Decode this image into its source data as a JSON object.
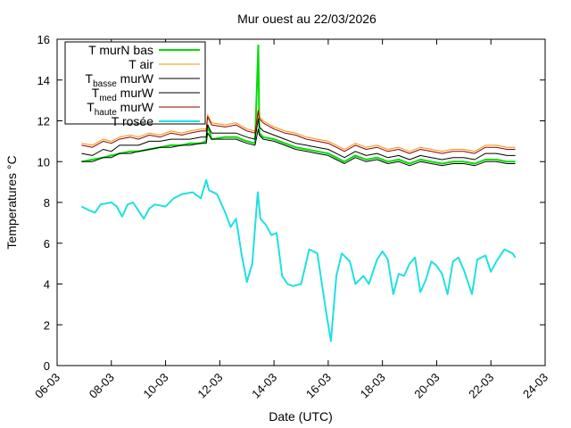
{
  "chart_data": {
    "type": "line",
    "title": "Mur ouest au 22/03/2026",
    "xlabel": "Date (UTC)",
    "ylabel": "Temperatures °C",
    "x_unit": "day of March 2026",
    "xlim": [
      6,
      24
    ],
    "ylim": [
      0,
      16
    ],
    "x_ticks": [
      {
        "value": 6,
        "label": "06-03"
      },
      {
        "value": 8,
        "label": "08-03"
      },
      {
        "value": 10,
        "label": "10-03"
      },
      {
        "value": 12,
        "label": "12-03"
      },
      {
        "value": 14,
        "label": "14-03"
      },
      {
        "value": 16,
        "label": "16-03"
      },
      {
        "value": 18,
        "label": "18-03"
      },
      {
        "value": 20,
        "label": "20-03"
      },
      {
        "value": 22,
        "label": "22-03"
      },
      {
        "value": 24,
        "label": "24-03"
      }
    ],
    "y_ticks": [
      0,
      2,
      4,
      6,
      8,
      10,
      12,
      14,
      16
    ],
    "grid": false,
    "legend_position": "top-left",
    "series": [
      {
        "name": "T murN bas",
        "name_main": "T murN bas",
        "name_sub": "",
        "name_suffix": "",
        "color": "#00dd00",
        "width": 2,
        "x": [
          6.9,
          7.3,
          7.7,
          8.0,
          8.3,
          8.7,
          9.0,
          9.4,
          9.8,
          10.2,
          10.6,
          10.9,
          11.3,
          11.5,
          11.55,
          11.7,
          12.2,
          12.6,
          13.0,
          13.3,
          13.42,
          13.46,
          13.6,
          14.0,
          14.4,
          14.8,
          15.2,
          15.6,
          16.0,
          16.3,
          16.6,
          17.0,
          17.4,
          17.8,
          18.2,
          18.6,
          19.0,
          19.4,
          19.8,
          20.2,
          20.6,
          21.0,
          21.4,
          21.8,
          22.2,
          22.6,
          22.9
        ],
        "y": [
          10.0,
          10.1,
          10.2,
          10.3,
          10.4,
          10.5,
          10.5,
          10.6,
          10.7,
          10.8,
          10.8,
          10.9,
          10.9,
          11.0,
          11.8,
          11.1,
          11.2,
          11.2,
          11.0,
          10.9,
          15.7,
          11.4,
          11.2,
          11.1,
          10.9,
          10.7,
          10.6,
          10.5,
          10.4,
          10.2,
          10.0,
          10.3,
          10.1,
          10.2,
          10.0,
          10.1,
          9.9,
          10.1,
          10.0,
          9.9,
          10.0,
          10.0,
          9.9,
          10.1,
          10.1,
          10.0,
          10.0
        ]
      },
      {
        "name": "T air",
        "name_main": "T air",
        "name_sub": "",
        "name_suffix": "",
        "color": "#ff8c00",
        "width": 1,
        "x": [
          6.9,
          7.3,
          7.7,
          8.0,
          8.3,
          8.7,
          9.0,
          9.4,
          9.8,
          10.2,
          10.6,
          10.9,
          11.3,
          11.5,
          11.55,
          11.7,
          12.2,
          12.6,
          13.0,
          13.3,
          13.42,
          13.46,
          13.6,
          14.0,
          14.4,
          14.8,
          15.2,
          15.6,
          16.0,
          16.3,
          16.6,
          17.0,
          17.4,
          17.8,
          18.2,
          18.6,
          19.0,
          19.4,
          19.8,
          20.2,
          20.6,
          21.0,
          21.4,
          21.8,
          22.2,
          22.6,
          22.9
        ],
        "y": [
          10.9,
          10.8,
          11.1,
          11.0,
          11.2,
          11.3,
          11.2,
          11.4,
          11.3,
          11.5,
          11.4,
          11.5,
          11.6,
          11.6,
          12.3,
          11.9,
          11.8,
          11.9,
          11.6,
          11.5,
          12.6,
          12.2,
          12.0,
          11.7,
          11.5,
          11.4,
          11.2,
          11.1,
          11.0,
          10.8,
          10.6,
          10.9,
          10.7,
          10.8,
          10.6,
          10.7,
          10.5,
          10.7,
          10.6,
          10.5,
          10.6,
          10.6,
          10.5,
          10.8,
          10.8,
          10.7,
          10.7
        ]
      },
      {
        "name": "Tbasse murW",
        "name_main": "T",
        "name_sub": "basse",
        "name_suffix": " murW",
        "color": "#000000",
        "width": 1,
        "x": [
          6.9,
          7.3,
          7.7,
          8.0,
          8.3,
          8.7,
          9.0,
          9.4,
          9.8,
          10.2,
          10.6,
          10.9,
          11.3,
          11.5,
          11.55,
          11.7,
          12.2,
          12.6,
          13.0,
          13.3,
          13.42,
          13.46,
          13.6,
          14.0,
          14.4,
          14.8,
          15.2,
          15.6,
          16.0,
          16.3,
          16.6,
          17.0,
          17.4,
          17.8,
          18.2,
          18.6,
          19.0,
          19.4,
          19.8,
          20.2,
          20.6,
          21.0,
          21.4,
          21.8,
          22.2,
          22.6,
          22.9
        ],
        "y": [
          10.0,
          10.0,
          10.2,
          10.2,
          10.4,
          10.4,
          10.5,
          10.6,
          10.7,
          10.7,
          10.8,
          10.8,
          10.9,
          10.9,
          11.4,
          11.1,
          11.1,
          11.1,
          10.9,
          10.8,
          11.6,
          11.3,
          11.1,
          11.0,
          10.8,
          10.6,
          10.5,
          10.4,
          10.3,
          10.1,
          9.9,
          10.2,
          10.0,
          10.1,
          9.9,
          10.0,
          9.8,
          10.0,
          9.9,
          9.8,
          9.9,
          9.9,
          9.8,
          10.0,
          10.0,
          9.9,
          9.9
        ]
      },
      {
        "name": "Tmed murW",
        "name_main": "T",
        "name_sub": "med",
        "name_suffix": " murW",
        "color": "#000000",
        "width": 1,
        "x": [
          6.9,
          7.3,
          7.7,
          8.0,
          8.3,
          8.7,
          9.0,
          9.4,
          9.8,
          10.2,
          10.6,
          10.9,
          11.3,
          11.5,
          11.55,
          11.7,
          12.2,
          12.6,
          13.0,
          13.3,
          13.42,
          13.46,
          13.6,
          14.0,
          14.4,
          14.8,
          15.2,
          15.6,
          16.0,
          16.3,
          16.6,
          17.0,
          17.4,
          17.8,
          18.2,
          18.6,
          19.0,
          19.4,
          19.8,
          20.2,
          20.6,
          21.0,
          21.4,
          21.8,
          22.2,
          22.6,
          22.9
        ],
        "y": [
          10.4,
          10.3,
          10.6,
          10.5,
          10.8,
          10.8,
          10.8,
          11.0,
          11.0,
          11.1,
          11.1,
          11.1,
          11.2,
          11.2,
          11.8,
          11.4,
          11.4,
          11.4,
          11.2,
          11.1,
          12.1,
          11.7,
          11.5,
          11.3,
          11.1,
          10.9,
          10.8,
          10.7,
          10.6,
          10.4,
          10.2,
          10.5,
          10.3,
          10.4,
          10.2,
          10.3,
          10.1,
          10.3,
          10.2,
          10.1,
          10.2,
          10.2,
          10.1,
          10.4,
          10.4,
          10.3,
          10.3
        ]
      },
      {
        "name": "Thaute murW",
        "name_main": "T",
        "name_sub": "haute",
        "name_suffix": " murW",
        "color": "#8b0000",
        "width": 1,
        "x": [
          6.9,
          7.3,
          7.7,
          8.0,
          8.3,
          8.7,
          9.0,
          9.4,
          9.8,
          10.2,
          10.6,
          10.9,
          11.3,
          11.5,
          11.55,
          11.7,
          12.2,
          12.6,
          13.0,
          13.3,
          13.42,
          13.46,
          13.6,
          14.0,
          14.4,
          14.8,
          15.2,
          15.6,
          16.0,
          16.3,
          16.6,
          17.0,
          17.4,
          17.8,
          18.2,
          18.6,
          19.0,
          19.4,
          19.8,
          20.2,
          20.6,
          21.0,
          21.4,
          21.8,
          22.2,
          22.6,
          22.9
        ],
        "y": [
          10.8,
          10.7,
          11.0,
          10.9,
          11.1,
          11.2,
          11.1,
          11.3,
          11.2,
          11.4,
          11.3,
          11.4,
          11.5,
          11.5,
          12.2,
          11.8,
          11.7,
          11.8,
          11.5,
          11.4,
          12.5,
          12.1,
          11.9,
          11.6,
          11.4,
          11.3,
          11.1,
          11.0,
          10.9,
          10.7,
          10.5,
          10.8,
          10.6,
          10.7,
          10.5,
          10.6,
          10.4,
          10.6,
          10.5,
          10.4,
          10.5,
          10.5,
          10.4,
          10.7,
          10.7,
          10.6,
          10.6
        ]
      },
      {
        "name": "T rosée",
        "name_main": "T rosée",
        "name_sub": "",
        "name_suffix": "",
        "color": "#20e0e0",
        "width": 2,
        "x": [
          6.9,
          7.2,
          7.4,
          7.6,
          8.0,
          8.2,
          8.4,
          8.6,
          8.8,
          9.0,
          9.2,
          9.4,
          9.6,
          10.0,
          10.3,
          10.6,
          11.0,
          11.3,
          11.5,
          11.6,
          11.9,
          12.2,
          12.4,
          12.6,
          12.8,
          13.0,
          13.2,
          13.4,
          13.5,
          13.7,
          13.9,
          14.1,
          14.3,
          14.5,
          14.7,
          15.0,
          15.3,
          15.6,
          15.9,
          16.1,
          16.3,
          16.5,
          16.8,
          17.0,
          17.3,
          17.5,
          17.8,
          18.0,
          18.2,
          18.4,
          18.6,
          18.8,
          19.0,
          19.2,
          19.4,
          19.6,
          19.8,
          20.0,
          20.2,
          20.4,
          20.6,
          20.8,
          21.0,
          21.3,
          21.5,
          21.8,
          22.0,
          22.2,
          22.5,
          22.8,
          22.9
        ],
        "y": [
          7.8,
          7.6,
          7.5,
          7.9,
          8.0,
          7.8,
          7.3,
          7.9,
          8.0,
          7.6,
          7.2,
          7.7,
          7.9,
          7.8,
          8.2,
          8.4,
          8.5,
          8.2,
          9.1,
          8.6,
          8.4,
          7.5,
          6.8,
          7.2,
          5.5,
          4.1,
          5.0,
          8.5,
          7.2,
          6.9,
          6.4,
          6.5,
          4.4,
          4.0,
          3.9,
          4.0,
          5.7,
          5.5,
          2.8,
          1.2,
          4.4,
          5.5,
          5.1,
          4.0,
          4.4,
          4.0,
          5.2,
          5.6,
          5.2,
          3.5,
          4.5,
          4.4,
          5.0,
          5.3,
          3.6,
          4.2,
          5.1,
          4.9,
          4.5,
          3.5,
          5.1,
          5.3,
          4.7,
          3.5,
          5.2,
          5.4,
          4.6,
          5.1,
          5.7,
          5.5,
          5.3
        ]
      }
    ]
  }
}
